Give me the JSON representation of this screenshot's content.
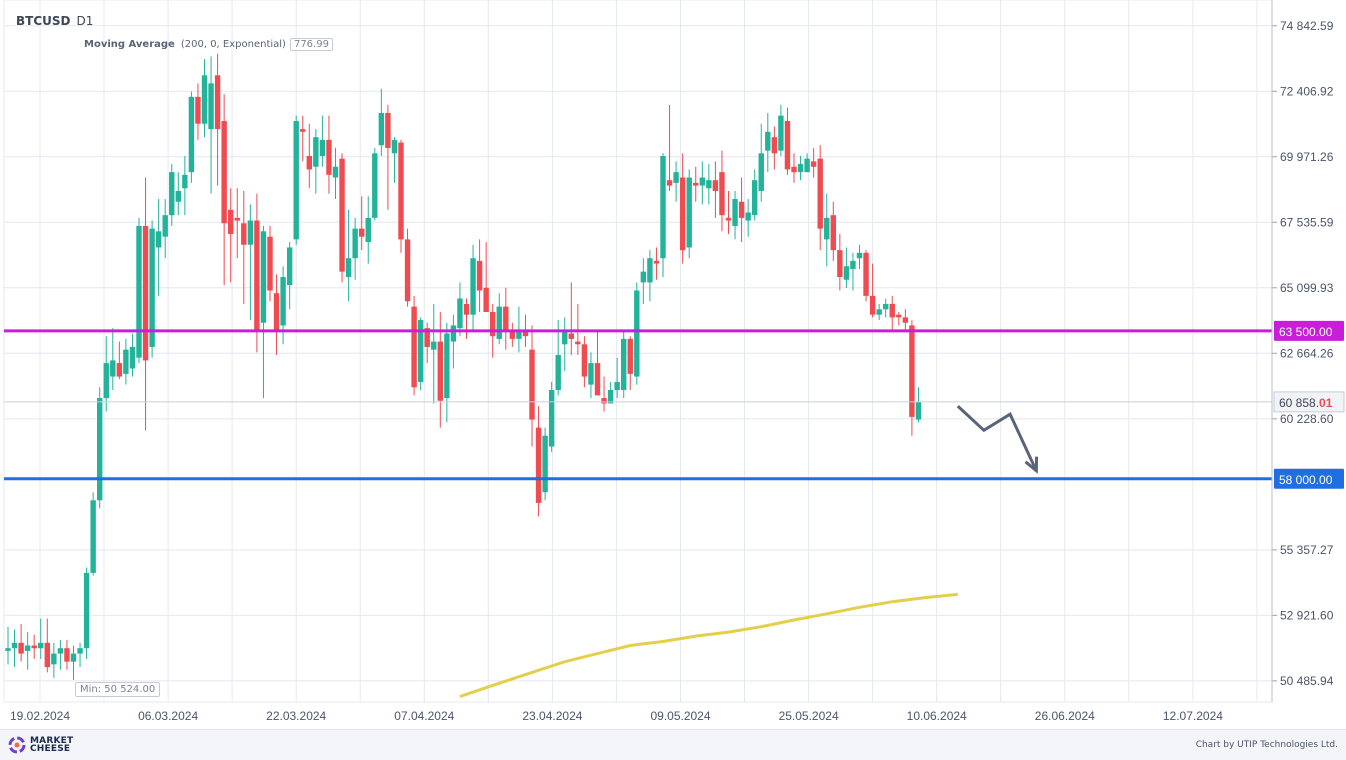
{
  "header": {
    "symbol": "BTCUSD",
    "timeframe": "D1",
    "indicator_name": "Moving Average",
    "indicator_params": "(200, 0, Exponential)",
    "indicator_value": "776.99"
  },
  "min_label": "Min: 50 524.00",
  "footer": {
    "logo_line1": "MARKET",
    "logo_line2": "CHEESE",
    "credit": "Chart by UTIP Technologies Ltd."
  },
  "colors": {
    "bull": "#22b39a",
    "bear": "#ef4b50",
    "resistance_line": "#c81ed8",
    "support_line": "#1f6fe0",
    "moving_average": "#e3cf4a",
    "forecast_arrow": "#5a6478",
    "grid": "#e4e8f1"
  },
  "chart_data": {
    "type": "candlestick",
    "symbol": "BTCUSD",
    "timeframe": "D1",
    "y_axis": {
      "ylim": [
        49700,
        75800
      ],
      "ticks": [
        "74 842.59",
        "72 406.92",
        "69 971.26",
        "67 535.59",
        "65 099.93",
        "62 664.26",
        "60 228.60",
        "55 357.27",
        "52 921.60",
        "50 485.94"
      ],
      "tick_values": [
        74842.59,
        72406.92,
        69971.26,
        67535.59,
        65099.93,
        62664.26,
        60228.6,
        55357.27,
        52921.6,
        50485.94
      ]
    },
    "x_axis": {
      "labels": [
        "19.02.2024",
        "06.03.2024",
        "22.03.2024",
        "07.04.2024",
        "23.04.2024",
        "09.05.2024",
        "25.05.2024",
        "10.06.2024",
        "26.06.2024",
        "12.07.2024"
      ]
    },
    "candles": [
      {
        "o": 51600,
        "h": 52500,
        "l": 51100,
        "c": 51700
      },
      {
        "o": 51700,
        "h": 52400,
        "l": 51000,
        "c": 51900
      },
      {
        "o": 51900,
        "h": 52600,
        "l": 51200,
        "c": 51500
      },
      {
        "o": 51600,
        "h": 52300,
        "l": 50900,
        "c": 51800
      },
      {
        "o": 51800,
        "h": 52200,
        "l": 51300,
        "c": 51700
      },
      {
        "o": 51700,
        "h": 52800,
        "l": 51300,
        "c": 51900
      },
      {
        "o": 51900,
        "h": 52800,
        "l": 50800,
        "c": 51000
      },
      {
        "o": 51100,
        "h": 51900,
        "l": 50600,
        "c": 51500
      },
      {
        "o": 51500,
        "h": 52000,
        "l": 50900,
        "c": 51700
      },
      {
        "o": 51700,
        "h": 52000,
        "l": 50900,
        "c": 51200
      },
      {
        "o": 51200,
        "h": 51800,
        "l": 50524,
        "c": 51500
      },
      {
        "o": 51500,
        "h": 51900,
        "l": 51000,
        "c": 51700
      },
      {
        "o": 51700,
        "h": 54700,
        "l": 51300,
        "c": 54500
      },
      {
        "o": 54500,
        "h": 57500,
        "l": 54400,
        "c": 57200
      },
      {
        "o": 57200,
        "h": 61400,
        "l": 56900,
        "c": 61000
      },
      {
        "o": 61000,
        "h": 63300,
        "l": 60500,
        "c": 62300
      },
      {
        "o": 61800,
        "h": 63600,
        "l": 61300,
        "c": 62400
      },
      {
        "o": 62300,
        "h": 63100,
        "l": 61700,
        "c": 61800
      },
      {
        "o": 61900,
        "h": 63200,
        "l": 61500,
        "c": 62800
      },
      {
        "o": 62100,
        "h": 63400,
        "l": 61800,
        "c": 62900
      },
      {
        "o": 62500,
        "h": 67700,
        "l": 62300,
        "c": 67400
      },
      {
        "o": 67400,
        "h": 69200,
        "l": 59800,
        "c": 62400
      },
      {
        "o": 62900,
        "h": 67600,
        "l": 62500,
        "c": 67300
      },
      {
        "o": 66600,
        "h": 68400,
        "l": 64800,
        "c": 67200
      },
      {
        "o": 67000,
        "h": 68400,
        "l": 66200,
        "c": 67800
      },
      {
        "o": 67800,
        "h": 69700,
        "l": 67400,
        "c": 69400
      },
      {
        "o": 68300,
        "h": 69400,
        "l": 67800,
        "c": 68700
      },
      {
        "o": 68800,
        "h": 70000,
        "l": 67800,
        "c": 69300
      },
      {
        "o": 69400,
        "h": 72400,
        "l": 69000,
        "c": 72200
      },
      {
        "o": 72200,
        "h": 72700,
        "l": 70600,
        "c": 71200
      },
      {
        "o": 71200,
        "h": 73600,
        "l": 70700,
        "c": 73000
      },
      {
        "o": 71000,
        "h": 73700,
        "l": 68600,
        "c": 72700
      },
      {
        "o": 73000,
        "h": 73800,
        "l": 68900,
        "c": 71000
      },
      {
        "o": 71300,
        "h": 72300,
        "l": 65200,
        "c": 67500
      },
      {
        "o": 68000,
        "h": 68800,
        "l": 65300,
        "c": 67100
      },
      {
        "o": 67700,
        "h": 68800,
        "l": 66200,
        "c": 67600
      },
      {
        "o": 67500,
        "h": 68700,
        "l": 64500,
        "c": 66700
      },
      {
        "o": 66700,
        "h": 68200,
        "l": 63900,
        "c": 67600
      },
      {
        "o": 67600,
        "h": 68600,
        "l": 62700,
        "c": 63500
      },
      {
        "o": 63800,
        "h": 67400,
        "l": 61000,
        "c": 67200
      },
      {
        "o": 67000,
        "h": 67400,
        "l": 64600,
        "c": 65000
      },
      {
        "o": 64900,
        "h": 65600,
        "l": 62600,
        "c": 63500
      },
      {
        "o": 63700,
        "h": 65900,
        "l": 63000,
        "c": 65500
      },
      {
        "o": 65200,
        "h": 66800,
        "l": 64300,
        "c": 66600
      },
      {
        "o": 66900,
        "h": 71500,
        "l": 66700,
        "c": 71300
      },
      {
        "o": 71000,
        "h": 71500,
        "l": 69800,
        "c": 70900
      },
      {
        "o": 70000,
        "h": 71200,
        "l": 68800,
        "c": 69500
      },
      {
        "o": 69600,
        "h": 71000,
        "l": 68600,
        "c": 70700
      },
      {
        "o": 70000,
        "h": 71500,
        "l": 69600,
        "c": 70600
      },
      {
        "o": 70600,
        "h": 71500,
        "l": 68600,
        "c": 69300
      },
      {
        "o": 69200,
        "h": 70300,
        "l": 68400,
        "c": 69600
      },
      {
        "o": 69900,
        "h": 70100,
        "l": 65300,
        "c": 65700
      },
      {
        "o": 65500,
        "h": 68000,
        "l": 64600,
        "c": 66200
      },
      {
        "o": 66200,
        "h": 67700,
        "l": 65400,
        "c": 67300
      },
      {
        "o": 67300,
        "h": 68500,
        "l": 66500,
        "c": 67000
      },
      {
        "o": 66800,
        "h": 68500,
        "l": 66000,
        "c": 67700
      },
      {
        "o": 67700,
        "h": 70300,
        "l": 67600,
        "c": 70100
      },
      {
        "o": 70400,
        "h": 72500,
        "l": 70000,
        "c": 71600
      },
      {
        "o": 71600,
        "h": 71900,
        "l": 68000,
        "c": 70300
      },
      {
        "o": 70100,
        "h": 70700,
        "l": 69000,
        "c": 70600
      },
      {
        "o": 70500,
        "h": 70600,
        "l": 66400,
        "c": 66900
      },
      {
        "o": 66900,
        "h": 67300,
        "l": 64400,
        "c": 64600
      },
      {
        "o": 64400,
        "h": 64800,
        "l": 61100,
        "c": 61400
      },
      {
        "o": 61600,
        "h": 64000,
        "l": 61300,
        "c": 63900
      },
      {
        "o": 63600,
        "h": 63800,
        "l": 62300,
        "c": 62900
      },
      {
        "o": 62800,
        "h": 64500,
        "l": 60800,
        "c": 63100
      },
      {
        "o": 63100,
        "h": 64200,
        "l": 59900,
        "c": 60900
      },
      {
        "o": 61000,
        "h": 63800,
        "l": 60100,
        "c": 63400
      },
      {
        "o": 63100,
        "h": 64100,
        "l": 62100,
        "c": 63700
      },
      {
        "o": 63600,
        "h": 65300,
        "l": 63300,
        "c": 64700
      },
      {
        "o": 64500,
        "h": 64700,
        "l": 63200,
        "c": 64100
      },
      {
        "o": 64100,
        "h": 66700,
        "l": 63500,
        "c": 66200
      },
      {
        "o": 66100,
        "h": 66900,
        "l": 64200,
        "c": 65000
      },
      {
        "o": 65100,
        "h": 66800,
        "l": 64200,
        "c": 64200
      },
      {
        "o": 64200,
        "h": 64500,
        "l": 62500,
        "c": 63300
      },
      {
        "o": 63200,
        "h": 64900,
        "l": 63000,
        "c": 64400
      },
      {
        "o": 64400,
        "h": 65100,
        "l": 62800,
        "c": 63500
      },
      {
        "o": 63500,
        "h": 63800,
        "l": 62900,
        "c": 63200
      },
      {
        "o": 63200,
        "h": 64400,
        "l": 62700,
        "c": 63500
      },
      {
        "o": 63500,
        "h": 64100,
        "l": 62900,
        "c": 63300
      },
      {
        "o": 62800,
        "h": 63700,
        "l": 59200,
        "c": 60200
      },
      {
        "o": 59900,
        "h": 60700,
        "l": 56600,
        "c": 57100
      },
      {
        "o": 57500,
        "h": 59900,
        "l": 57200,
        "c": 59600
      },
      {
        "o": 59200,
        "h": 61600,
        "l": 59000,
        "c": 61300
      },
      {
        "o": 61300,
        "h": 63900,
        "l": 61100,
        "c": 62600
      },
      {
        "o": 63000,
        "h": 64000,
        "l": 62000,
        "c": 63500
      },
      {
        "o": 63400,
        "h": 65300,
        "l": 62600,
        "c": 63200
      },
      {
        "o": 63100,
        "h": 64500,
        "l": 62600,
        "c": 63000
      },
      {
        "o": 63000,
        "h": 63300,
        "l": 61400,
        "c": 61800
      },
      {
        "o": 61500,
        "h": 62700,
        "l": 61000,
        "c": 62300
      },
      {
        "o": 62300,
        "h": 63500,
        "l": 61100,
        "c": 61100
      },
      {
        "o": 61000,
        "h": 61800,
        "l": 60500,
        "c": 60800
      },
      {
        "o": 60800,
        "h": 61600,
        "l": 60800,
        "c": 61300
      },
      {
        "o": 61300,
        "h": 62500,
        "l": 61000,
        "c": 61600
      },
      {
        "o": 61300,
        "h": 63500,
        "l": 61000,
        "c": 63200
      },
      {
        "o": 63200,
        "h": 63300,
        "l": 61300,
        "c": 61900
      },
      {
        "o": 61800,
        "h": 65300,
        "l": 61500,
        "c": 65000
      },
      {
        "o": 65300,
        "h": 66200,
        "l": 64500,
        "c": 65700
      },
      {
        "o": 65300,
        "h": 66500,
        "l": 64600,
        "c": 66200
      },
      {
        "o": 66100,
        "h": 66600,
        "l": 65400,
        "c": 66000
      },
      {
        "o": 66200,
        "h": 70100,
        "l": 65500,
        "c": 70000
      },
      {
        "o": 69100,
        "h": 71900,
        "l": 68700,
        "c": 68900
      },
      {
        "o": 69000,
        "h": 69800,
        "l": 68300,
        "c": 69400
      },
      {
        "o": 69200,
        "h": 70100,
        "l": 66000,
        "c": 66500
      },
      {
        "o": 66600,
        "h": 69500,
        "l": 66200,
        "c": 69200
      },
      {
        "o": 69000,
        "h": 69600,
        "l": 68300,
        "c": 68900
      },
      {
        "o": 68900,
        "h": 69800,
        "l": 68200,
        "c": 69200
      },
      {
        "o": 68800,
        "h": 69700,
        "l": 68200,
        "c": 69100
      },
      {
        "o": 69100,
        "h": 69800,
        "l": 67700,
        "c": 68700
      },
      {
        "o": 69400,
        "h": 70200,
        "l": 67200,
        "c": 67800
      },
      {
        "o": 67700,
        "h": 68700,
        "l": 67100,
        "c": 67600
      },
      {
        "o": 67400,
        "h": 68700,
        "l": 66900,
        "c": 68400
      },
      {
        "o": 68300,
        "h": 69200,
        "l": 66800,
        "c": 67700
      },
      {
        "o": 67600,
        "h": 68400,
        "l": 67000,
        "c": 67900
      },
      {
        "o": 67800,
        "h": 69500,
        "l": 67600,
        "c": 69100
      },
      {
        "o": 68700,
        "h": 71200,
        "l": 68300,
        "c": 70100
      },
      {
        "o": 70200,
        "h": 71600,
        "l": 69400,
        "c": 70900
      },
      {
        "o": 70700,
        "h": 71100,
        "l": 69500,
        "c": 70100
      },
      {
        "o": 70200,
        "h": 71900,
        "l": 70000,
        "c": 71500
      },
      {
        "o": 71300,
        "h": 71800,
        "l": 69300,
        "c": 69500
      },
      {
        "o": 69600,
        "h": 70100,
        "l": 69000,
        "c": 69400
      },
      {
        "o": 69400,
        "h": 70000,
        "l": 69100,
        "c": 69700
      },
      {
        "o": 69400,
        "h": 70100,
        "l": 69400,
        "c": 69900
      },
      {
        "o": 69800,
        "h": 70300,
        "l": 69200,
        "c": 69600
      },
      {
        "o": 69900,
        "h": 70400,
        "l": 66500,
        "c": 67300
      },
      {
        "o": 66900,
        "h": 68600,
        "l": 65900,
        "c": 67700
      },
      {
        "o": 67800,
        "h": 68300,
        "l": 66100,
        "c": 66500
      },
      {
        "o": 66500,
        "h": 67100,
        "l": 65000,
        "c": 65500
      },
      {
        "o": 65400,
        "h": 66600,
        "l": 65100,
        "c": 65900
      },
      {
        "o": 65800,
        "h": 66400,
        "l": 65000,
        "c": 66100
      },
      {
        "o": 66200,
        "h": 66700,
        "l": 65800,
        "c": 66400
      },
      {
        "o": 66400,
        "h": 66500,
        "l": 64600,
        "c": 64800
      },
      {
        "o": 64800,
        "h": 66000,
        "l": 64000,
        "c": 64100
      },
      {
        "o": 64100,
        "h": 64500,
        "l": 63900,
        "c": 64300
      },
      {
        "o": 64300,
        "h": 64700,
        "l": 64000,
        "c": 64500
      },
      {
        "o": 64500,
        "h": 64800,
        "l": 63500,
        "c": 64000
      },
      {
        "o": 64100,
        "h": 64200,
        "l": 63700,
        "c": 64000
      },
      {
        "o": 64000,
        "h": 64300,
        "l": 63500,
        "c": 63800
      },
      {
        "o": 63700,
        "h": 63900,
        "l": 59600,
        "c": 60300
      },
      {
        "o": 60200,
        "h": 61400,
        "l": 60100,
        "c": 60858
      }
    ],
    "horizontal_levels": [
      {
        "value": 63500.0,
        "label": "63 500.00",
        "color": "#c81ed8"
      },
      {
        "value": 58000.0,
        "label": "58 000.00",
        "color": "#1f6fe0"
      }
    ],
    "current_price": {
      "value": 60858.01,
      "label_main": "60 858.",
      "label_tail": "01"
    },
    "moving_average": {
      "name": "Moving Average",
      "period": 200,
      "type": "Exponential",
      "points": [
        [
          69,
          49900
        ],
        [
          75,
          50400
        ],
        [
          80,
          50800
        ],
        [
          85,
          51200
        ],
        [
          90,
          51500
        ],
        [
          95,
          51800
        ],
        [
          100,
          51950
        ],
        [
          105,
          52150
        ],
        [
          110,
          52300
        ],
        [
          115,
          52500
        ],
        [
          120,
          52750
        ],
        [
          125,
          52980
        ],
        [
          130,
          53220
        ],
        [
          135,
          53430
        ],
        [
          140,
          53580
        ],
        [
          145,
          53700
        ]
      ]
    },
    "forecast_arrow": {
      "points": [
        [
          145,
          60700
        ],
        [
          149,
          59800
        ],
        [
          153,
          60400
        ],
        [
          157,
          58300
        ]
      ]
    }
  }
}
